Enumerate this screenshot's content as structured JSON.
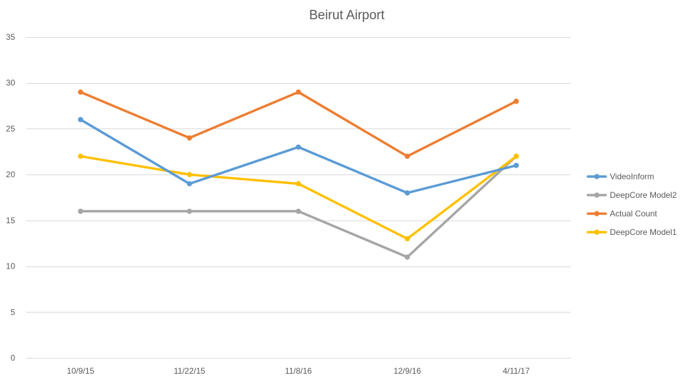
{
  "chart_data": {
    "type": "line",
    "title": "Beirut Airport",
    "xlabel": "",
    "ylabel": "",
    "categories": [
      "10/9/15",
      "11/22/15",
      "11/8/16",
      "12/9/16",
      "4/11/17"
    ],
    "ylim": [
      0,
      35
    ],
    "yticks": [
      0,
      5,
      10,
      15,
      20,
      25,
      30,
      35
    ],
    "grid": true,
    "legend_position": "right",
    "series": [
      {
        "name": "VideoInform",
        "color": "#5b9bd5",
        "values": [
          26,
          19,
          23,
          18,
          21
        ]
      },
      {
        "name": "DeepCore Model2",
        "color": "#a5a5a5",
        "values": [
          16,
          16,
          16,
          11,
          22
        ]
      },
      {
        "name": "Actual Count",
        "color": "#ed7d31",
        "values": [
          29,
          24,
          29,
          22,
          28
        ]
      },
      {
        "name": "DeepCore Model1",
        "color": "#ffc000",
        "values": [
          22,
          20,
          19,
          13,
          22
        ]
      }
    ],
    "draw_order": [
      "DeepCore Model2",
      "DeepCore Model1",
      "VideoInform",
      "Actual Count"
    ]
  }
}
